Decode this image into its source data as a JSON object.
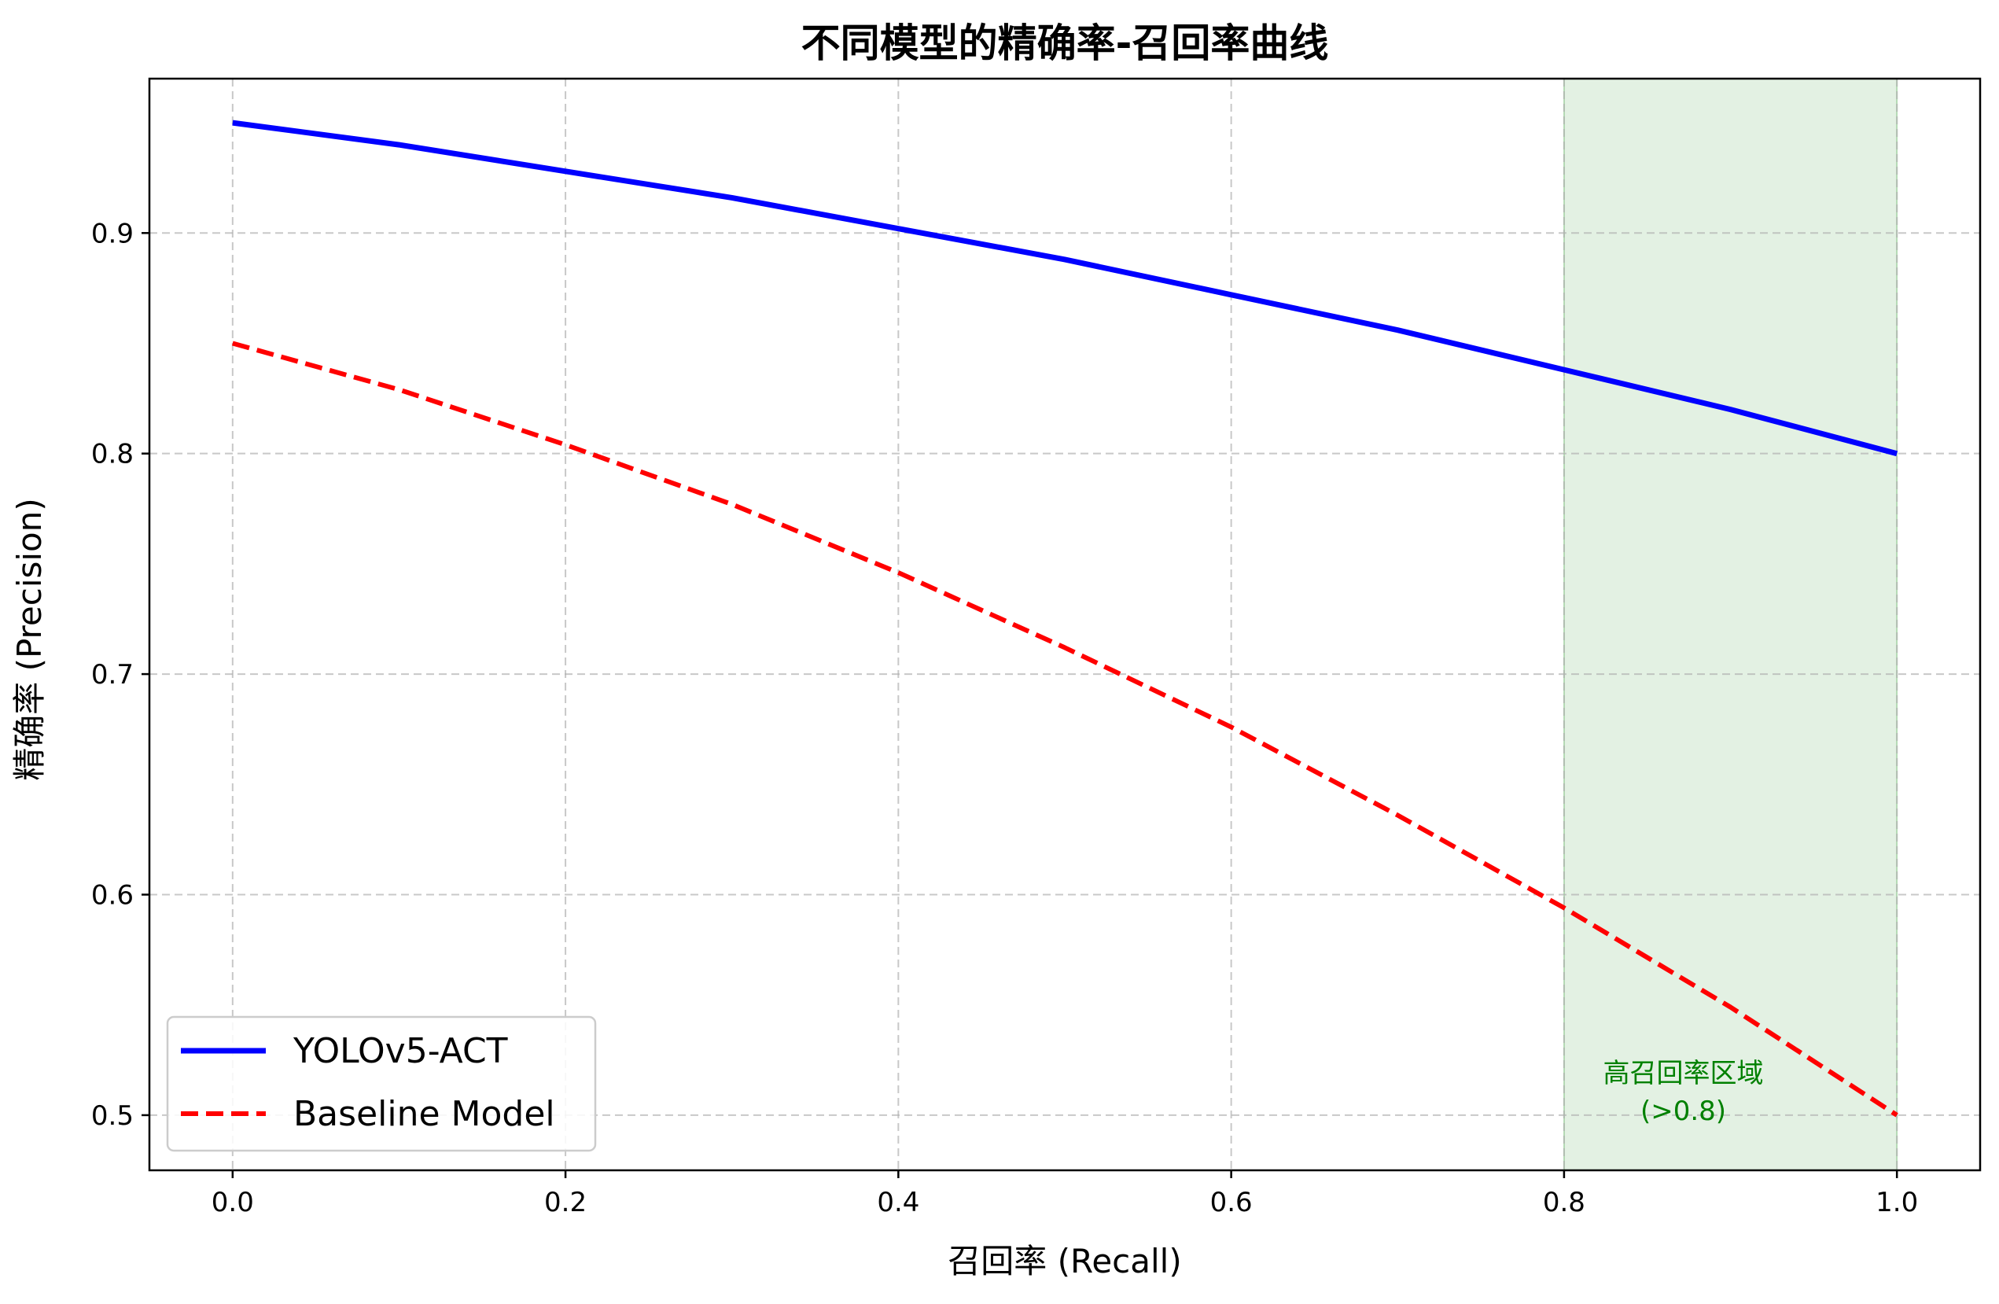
{
  "chart_data": {
    "type": "line",
    "title": "不同模型的精确率-召回率曲线",
    "xlabel": "召回率 (Recall)",
    "ylabel": "精确率 (Precision)",
    "xlim": [
      -0.05,
      1.05
    ],
    "ylim": [
      0.475,
      0.97
    ],
    "x_ticks": [
      0.0,
      0.2,
      0.4,
      0.6,
      0.8,
      1.0
    ],
    "x_tick_labels": [
      "0.0",
      "0.2",
      "0.4",
      "0.6",
      "0.8",
      "1.0"
    ],
    "y_ticks": [
      0.5,
      0.6,
      0.7,
      0.8,
      0.9
    ],
    "y_tick_labels": [
      "0.5",
      "0.6",
      "0.7",
      "0.8",
      "0.9"
    ],
    "grid": true,
    "legend_position": "lower-left",
    "series": [
      {
        "name": "YOLOv5-ACT",
        "color": "#0000ff",
        "style": "solid",
        "x": [
          0.0,
          0.1,
          0.2,
          0.3,
          0.4,
          0.5,
          0.6,
          0.7,
          0.8,
          0.9,
          1.0
        ],
        "y": [
          0.95,
          0.94,
          0.928,
          0.916,
          0.902,
          0.888,
          0.872,
          0.856,
          0.838,
          0.82,
          0.8
        ]
      },
      {
        "name": "Baseline Model",
        "color": "#ff0000",
        "style": "dashed",
        "x": [
          0.0,
          0.1,
          0.2,
          0.3,
          0.4,
          0.5,
          0.6,
          0.7,
          0.8,
          0.9,
          1.0
        ],
        "y": [
          0.85,
          0.829,
          0.804,
          0.777,
          0.746,
          0.712,
          0.676,
          0.636,
          0.594,
          0.549,
          0.5
        ]
      }
    ],
    "shaded_region": {
      "x_start": 0.8,
      "x_end": 1.0,
      "color": "#008000",
      "label": "高召回率区域",
      "sublabel": "(>0.8)"
    }
  }
}
